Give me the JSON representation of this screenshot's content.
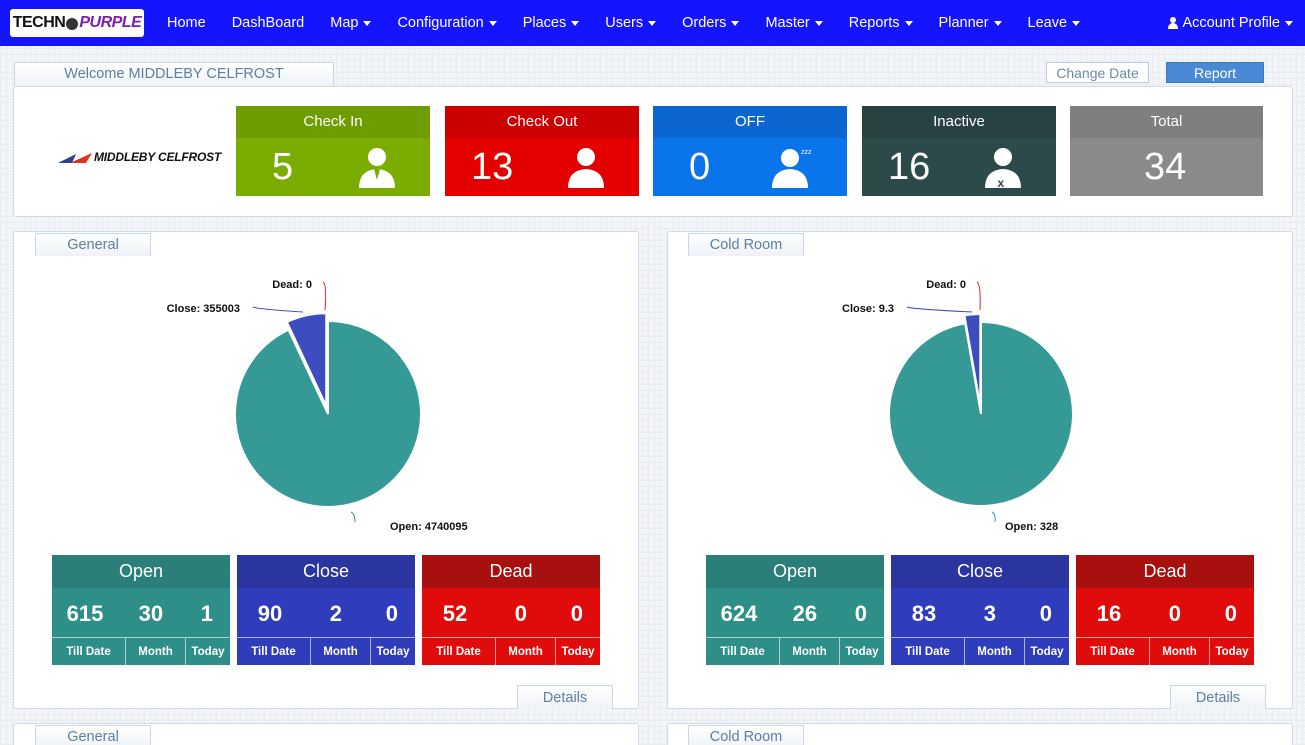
{
  "nav": {
    "logo": {
      "part1": "TECHN",
      "part2": "PURPLE"
    },
    "items": [
      "Home",
      "DashBoard",
      "Map",
      "Configuration",
      "Places",
      "Users",
      "Orders",
      "Master",
      "Reports",
      "Planner",
      "Leave"
    ],
    "account": "Account Profile"
  },
  "welcome": "Welcome MIDDLEBY CELFROST",
  "buttons": {
    "change_date": "Change Date",
    "report": "Report",
    "details": "Details"
  },
  "company_logo_text": "MIDDLEBY CELFROST",
  "stats": [
    {
      "label": "Check In",
      "value": "5",
      "color": "#7aad00",
      "head": "#6f9c00",
      "icon": "user-icon"
    },
    {
      "label": "Check Out",
      "value": "13",
      "color": "#e50000",
      "head": "#cc0000",
      "icon": "user-icon"
    },
    {
      "label": "OFF",
      "value": "0",
      "color": "#0a74ea",
      "head": "#0b66d2",
      "icon": "sleeping-user-icon"
    },
    {
      "label": "Inactive",
      "value": "16",
      "color": "#2c4a4a",
      "head": "#284242",
      "icon": "user-cross-icon"
    },
    {
      "label": "Total",
      "value": "34",
      "color": "#8a8a8a",
      "head": "#7f7f7f",
      "icon": ""
    }
  ],
  "panels": [
    {
      "title": "General",
      "chart_data": {
        "type": "pie",
        "slices": [
          {
            "label": "Open",
            "value": 4740095,
            "color": "#359a96"
          },
          {
            "label": "Close",
            "value": 355003,
            "color": "#3d4cbf"
          },
          {
            "label": "Dead",
            "value": 0,
            "color": "#d22"
          }
        ],
        "labels": [
          "Open: 4740095",
          "Close: 355003",
          "Dead: 0"
        ]
      },
      "summary": [
        {
          "title": "Open",
          "values": [
            "615",
            "30",
            "1"
          ],
          "labels": [
            "Till Date",
            "Month",
            "Today"
          ],
          "color": "#2e8f88",
          "head": "#2a7f79"
        },
        {
          "title": "Close",
          "values": [
            "90",
            "2",
            "0"
          ],
          "labels": [
            "Till Date",
            "Month",
            "Today"
          ],
          "color": "#2f3cbc",
          "head": "#2b35a0"
        },
        {
          "title": "Dead",
          "values": [
            "52",
            "0",
            "0"
          ],
          "labels": [
            "Till Date",
            "Month",
            "Today"
          ],
          "color": "#e00c0c",
          "head": "#a80f0f"
        }
      ]
    },
    {
      "title": "Cold Room",
      "chart_data": {
        "type": "pie",
        "slices": [
          {
            "label": "Open",
            "value": 328,
            "color": "#359a96"
          },
          {
            "label": "Close",
            "value": 9.3,
            "color": "#3d4cbf"
          },
          {
            "label": "Dead",
            "value": 0,
            "color": "#d22"
          }
        ],
        "labels": [
          "Open: 328",
          "Close: 9.3",
          "Dead: 0"
        ]
      },
      "summary": [
        {
          "title": "Open",
          "values": [
            "624",
            "26",
            "0"
          ],
          "labels": [
            "Till Date",
            "Month",
            "Today"
          ],
          "color": "#2e8f88",
          "head": "#2a7f79"
        },
        {
          "title": "Close",
          "values": [
            "83",
            "3",
            "0"
          ],
          "labels": [
            "Till Date",
            "Month",
            "Today"
          ],
          "color": "#2f3cbc",
          "head": "#2b35a0"
        },
        {
          "title": "Dead",
          "values": [
            "16",
            "0",
            "0"
          ],
          "labels": [
            "Till Date",
            "Month",
            "Today"
          ],
          "color": "#e00c0c",
          "head": "#a80f0f"
        }
      ]
    }
  ],
  "lower_panels": [
    "General",
    "Cold Room"
  ]
}
